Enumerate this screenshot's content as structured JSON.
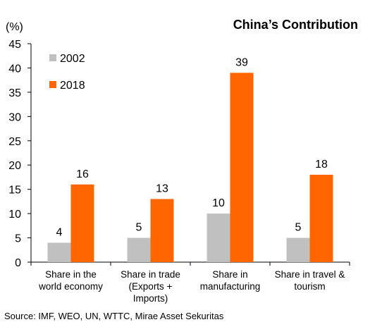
{
  "chart_data": {
    "type": "bar",
    "title": "China’s Contribution",
    "unit_label": "(%)",
    "categories": [
      [
        "Share in the",
        "world economy"
      ],
      [
        "Share in trade",
        "(Exports +",
        "Imports)"
      ],
      [
        "Share in",
        "manufacturing"
      ],
      [
        "Share in travel &",
        "tourism"
      ]
    ],
    "series": [
      {
        "name": "2002",
        "values": [
          4,
          5,
          10,
          5
        ],
        "color": "#c0c0c0"
      },
      {
        "name": "2018",
        "values": [
          16,
          13,
          39,
          18
        ],
        "color": "#ff6600"
      }
    ],
    "ylim": [
      0,
      45
    ],
    "yticks": [
      0,
      5,
      10,
      15,
      20,
      25,
      30,
      35,
      40,
      45
    ],
    "grid": false,
    "legend": "top-left",
    "source": "Source: IMF, WEO, UN, WTTC, Mirae Asset Sekuritas"
  }
}
